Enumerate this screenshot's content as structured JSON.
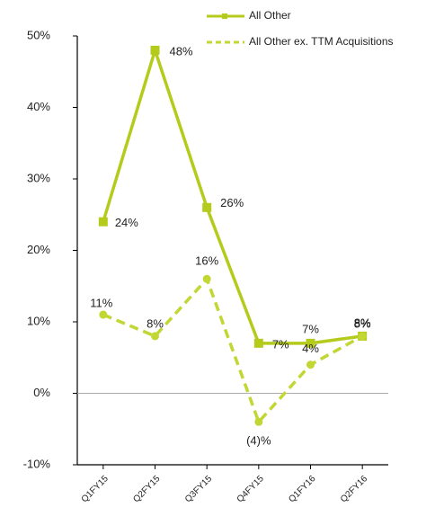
{
  "chart_data": {
    "type": "line",
    "categories": [
      "Q1FY15",
      "Q2FY15",
      "Q3FY15",
      "Q4FY15",
      "Q1FY16",
      "Q2FY16"
    ],
    "series": [
      {
        "name": "All Other",
        "color": "#b5cb1c",
        "dash": false,
        "marker": "square",
        "values": [
          24,
          48,
          26,
          7,
          7,
          8
        ],
        "value_labels": [
          "24%",
          "48%",
          "26%",
          "7%",
          "7%",
          "8%"
        ]
      },
      {
        "name": "All Other ex. TTM Acquisitions",
        "color": "#c2d634",
        "dash": true,
        "marker": "circle",
        "values": [
          11,
          8,
          16,
          -4,
          4,
          8
        ],
        "value_labels": [
          "11%",
          "8%",
          "16%",
          "(4)%",
          "4%",
          "8%"
        ]
      }
    ],
    "ylim": [
      -10,
      50
    ],
    "yticks": [
      {
        "value": -10,
        "label": "-10%"
      },
      {
        "value": 0,
        "label": "0%"
      },
      {
        "value": 10,
        "label": "10%"
      },
      {
        "value": 20,
        "label": "20%"
      },
      {
        "value": 30,
        "label": "30%"
      },
      {
        "value": 40,
        "label": "40%"
      },
      {
        "value": 50,
        "label": "50%"
      }
    ],
    "grid": false,
    "legend": "top-right"
  }
}
